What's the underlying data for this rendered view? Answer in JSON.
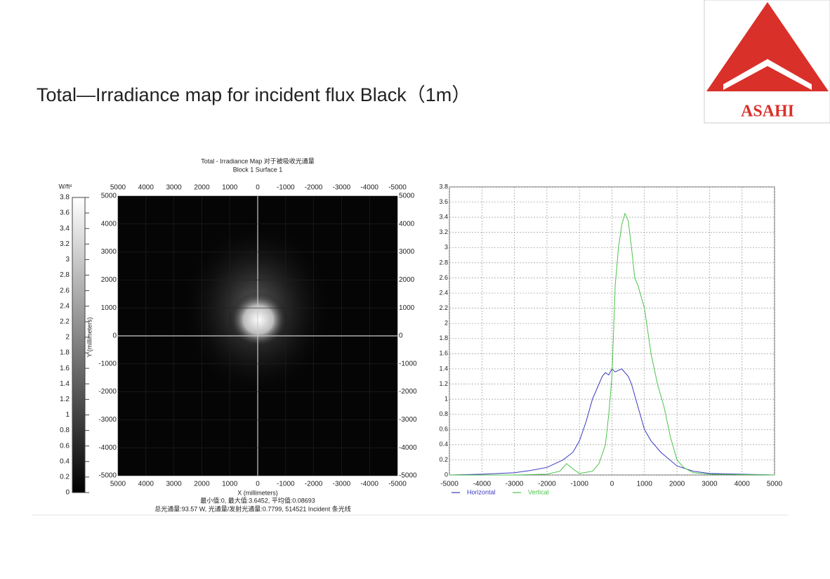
{
  "title": "Total—Irradiance map for incident flux Black（1m）",
  "logo": "ASAHI",
  "chart_data": [
    {
      "type": "heatmap",
      "title": "Total - Irradiance Map 对于被吸收光通量",
      "subtitle": "Block 1 Surface 1",
      "xlabel": "X (millimeters)",
      "ylabel": "Y (millimeters)",
      "colorbar_label": "W/ft²",
      "clim": [
        0,
        3.8
      ],
      "cticks": [
        0,
        0.2,
        0.4,
        0.6,
        0.8,
        1,
        1.2,
        1.4,
        1.6,
        1.8,
        2,
        2.2,
        2.4,
        2.6,
        2.8,
        3,
        3.2,
        3.4,
        3.6,
        3.8
      ],
      "xlim": [
        5000,
        -5000
      ],
      "xticks": [
        5000,
        4000,
        3000,
        2000,
        1000,
        0,
        -1000,
        -2000,
        -3000,
        -4000,
        -5000
      ],
      "ylim": [
        -5000,
        5000
      ],
      "yticks": [
        5000,
        4000,
        3000,
        2000,
        1000,
        0,
        -1000,
        -2000,
        -3000,
        -4000,
        -5000
      ],
      "stats": [
        "最小值:0, 最大值:3.6452, 平均值:0.08693",
        "总光通量:93.57 W, 光通量/发射光通量:0.7799, 514521 Incident 条光线"
      ]
    },
    {
      "type": "line",
      "xlim": [
        -5000,
        5000
      ],
      "xticks": [
        -5000,
        -4000,
        -3000,
        -2000,
        -1000,
        0,
        1000,
        2000,
        3000,
        4000,
        5000
      ],
      "ylim": [
        0,
        3.8
      ],
      "yticks": [
        0,
        0.2,
        0.4,
        0.6,
        0.8,
        1,
        1.2,
        1.4,
        1.6,
        1.8,
        2,
        2.2,
        2.4,
        2.6,
        2.8,
        3,
        3.2,
        3.4,
        3.6,
        3.8
      ],
      "grid": true,
      "legend": "bottom-left",
      "series": [
        {
          "name": "Horizontal",
          "color": "#3a3ac0",
          "x": [
            -5000,
            -4000,
            -3000,
            -2500,
            -2000,
            -1500,
            -1200,
            -1000,
            -800,
            -600,
            -400,
            -300,
            -200,
            -100,
            0,
            100,
            200,
            300,
            400,
            500,
            600,
            800,
            1000,
            1200,
            1500,
            2000,
            2500,
            3000,
            4000,
            5000
          ],
          "values": [
            0,
            0.01,
            0.03,
            0.06,
            0.1,
            0.2,
            0.3,
            0.45,
            0.7,
            1.0,
            1.2,
            1.3,
            1.35,
            1.32,
            1.4,
            1.36,
            1.38,
            1.4,
            1.35,
            1.3,
            1.2,
            0.9,
            0.6,
            0.45,
            0.3,
            0.12,
            0.05,
            0.02,
            0.01,
            0
          ]
        },
        {
          "name": "Vertical",
          "color": "#4cc34c",
          "x": [
            -5000,
            -3000,
            -2000,
            -1600,
            -1400,
            -1200,
            -1000,
            -600,
            -400,
            -200,
            -100,
            0,
            100,
            200,
            300,
            400,
            500,
            600,
            700,
            800,
            1000,
            1200,
            1400,
            1600,
            1800,
            2000,
            2200,
            2500,
            3000,
            5000
          ],
          "values": [
            0,
            0,
            0.01,
            0.05,
            0.15,
            0.08,
            0.02,
            0.05,
            0.15,
            0.4,
            0.8,
            1.3,
            2.5,
            3.0,
            3.3,
            3.45,
            3.35,
            3.0,
            2.6,
            2.5,
            2.2,
            1.6,
            1.2,
            0.9,
            0.5,
            0.2,
            0.1,
            0.03,
            0.01,
            0
          ]
        }
      ]
    }
  ]
}
